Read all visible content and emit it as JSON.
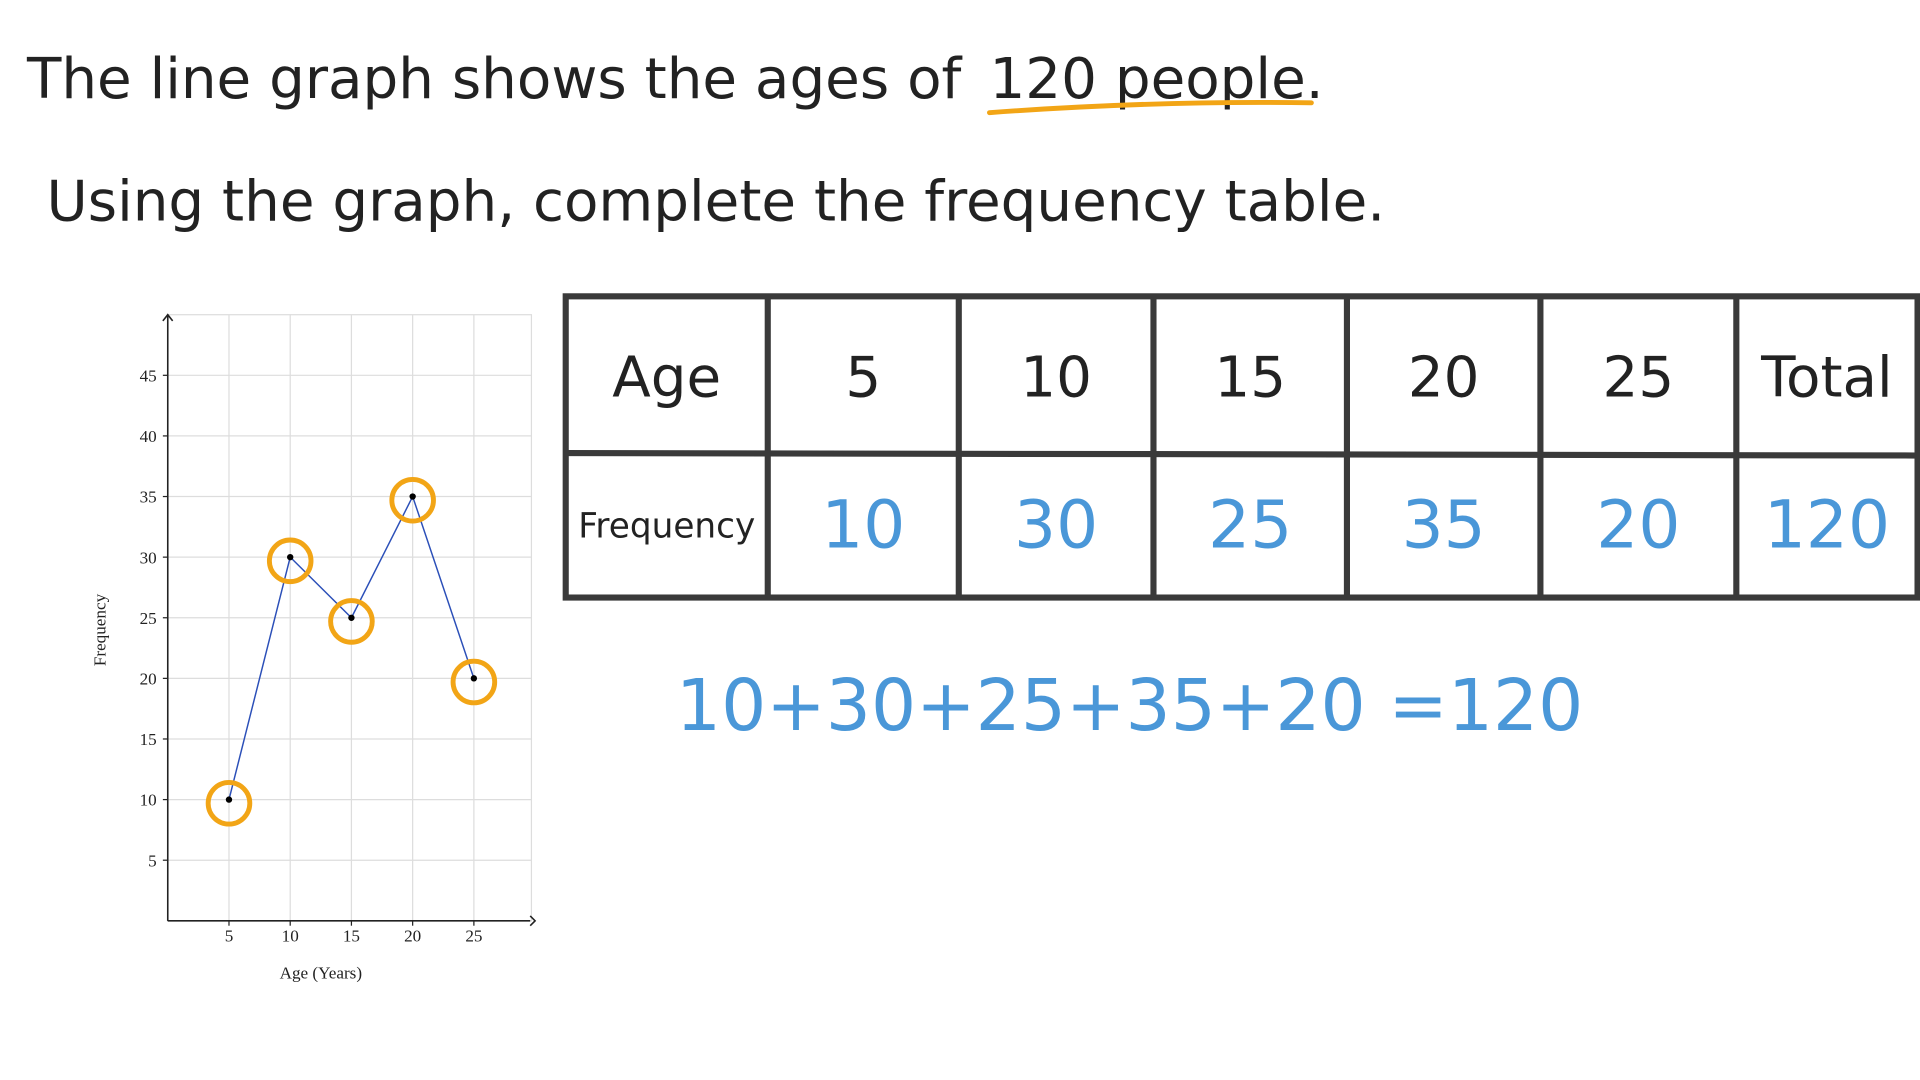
{
  "heading": {
    "line1": "The line graph shows the ages of",
    "line1_highlight": "120 people.",
    "line2": "Using the graph, complete the frequency table."
  },
  "chart_data": {
    "type": "line",
    "x": [
      5,
      10,
      15,
      20,
      25
    ],
    "values": [
      10,
      30,
      25,
      35,
      20
    ],
    "xlim": [
      0,
      30
    ],
    "ylim": [
      0,
      50
    ],
    "xticks": [
      5,
      10,
      15,
      20,
      25
    ],
    "yticks": [
      5,
      10,
      15,
      20,
      25,
      30,
      35,
      40,
      45
    ],
    "x_label": "Age (Years)",
    "y_label": "Frequency",
    "grid": true,
    "color": "#2b4fb8",
    "marker_color": "#000000",
    "highlight_color": "#f2a516"
  },
  "table": {
    "rows": [
      [
        "Age",
        "5",
        "10",
        "15",
        "20",
        "25",
        "Total"
      ],
      [
        "Frequency",
        "10",
        "30",
        "25",
        "35",
        "20",
        "120"
      ]
    ]
  },
  "equation": "10+30+25+35+20 =120"
}
